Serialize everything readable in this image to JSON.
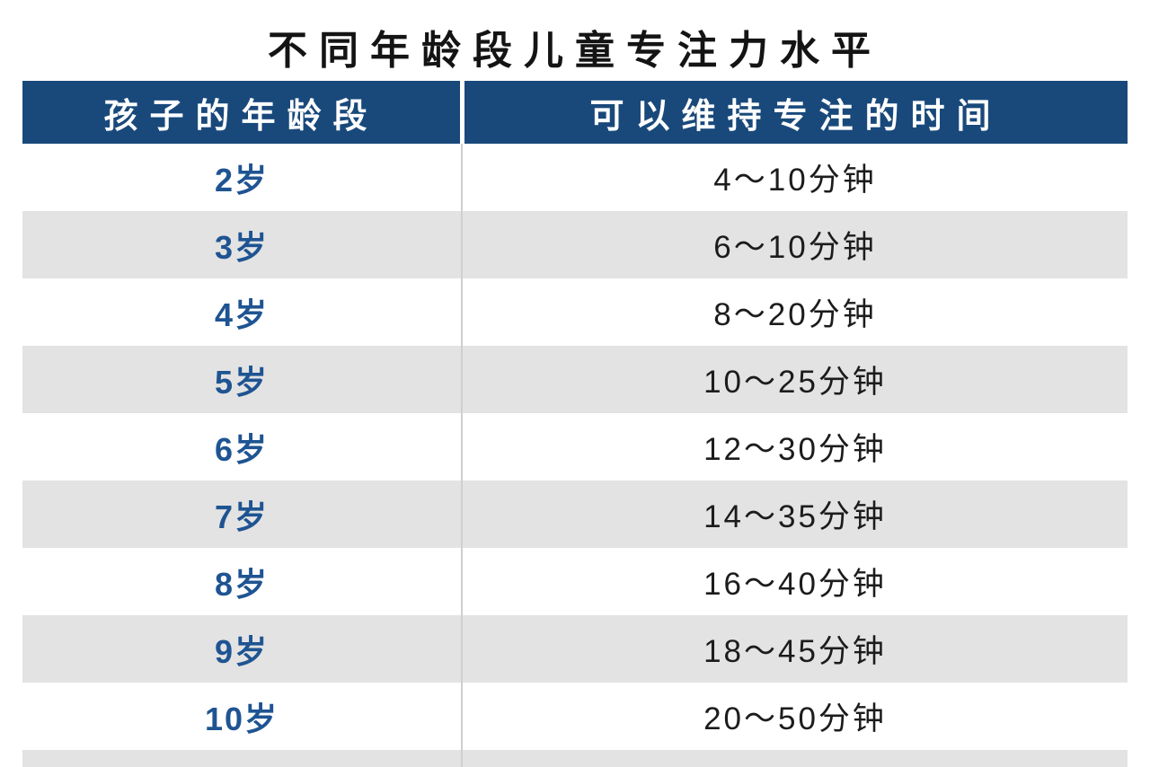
{
  "title": "不同年龄段儿童专注力水平",
  "colors": {
    "header_bg": "#19497B",
    "header_text": "#FFFFFF",
    "row_alt": "#E3E3E3",
    "row_base": "#FFFFFF",
    "age_text": "#1F5492",
    "time_text": "#1C1C1C",
    "divider": "#CFCFCF",
    "title_text": "#141414"
  },
  "chart_data": {
    "type": "table",
    "title": "不同年龄段儿童专注力水平",
    "columns": [
      "孩子的年龄段",
      "可以维持专注的时间"
    ],
    "rows": [
      [
        "2岁",
        "4～10分钟"
      ],
      [
        "3岁",
        "6～10分钟"
      ],
      [
        "4岁",
        "8～20分钟"
      ],
      [
        "5岁",
        "10～25分钟"
      ],
      [
        "6岁",
        "12～30分钟"
      ],
      [
        "7岁",
        "14～35分钟"
      ],
      [
        "8岁",
        "16～40分钟"
      ],
      [
        "9岁",
        "18～45分钟"
      ],
      [
        "10岁",
        "20～50分钟"
      ]
    ]
  }
}
